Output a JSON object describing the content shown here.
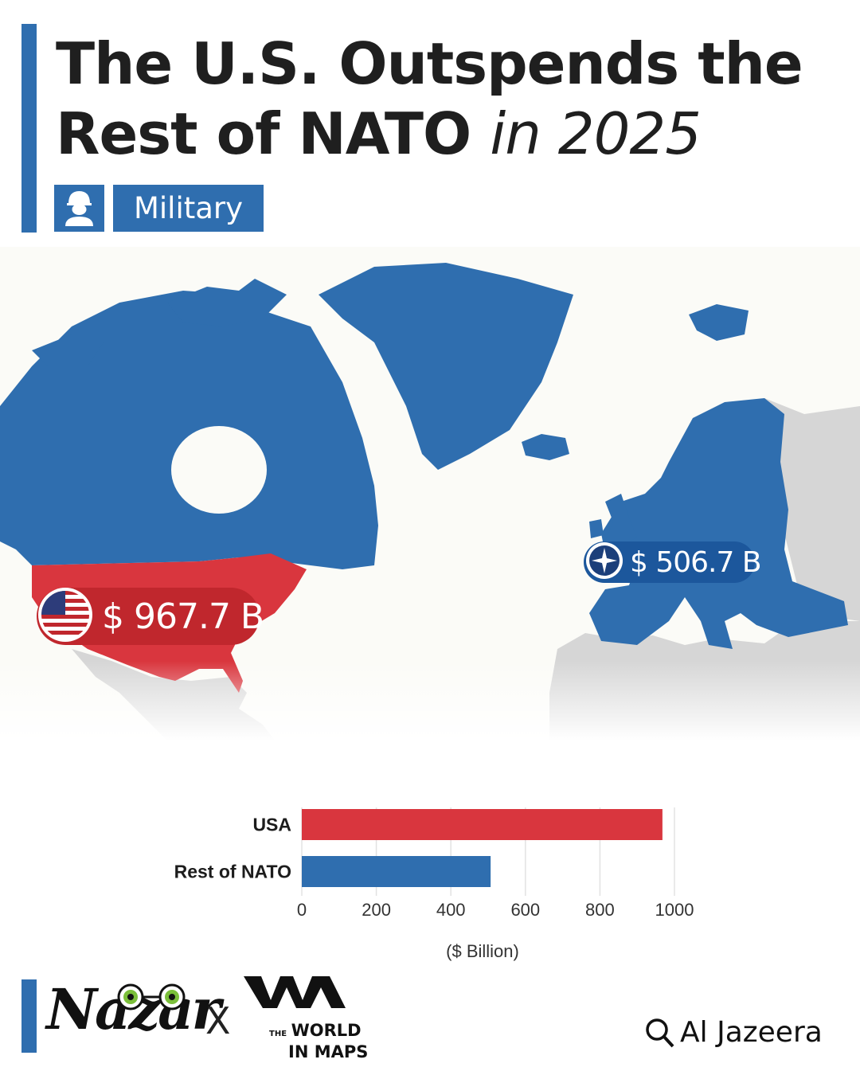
{
  "header": {
    "title_line1": "The U.S. Outspends the",
    "title_line2_bold": "Rest of NATO",
    "title_line2_italic": "in 2025",
    "category": "Military",
    "category_icon": "soldier-icon"
  },
  "map_labels": {
    "usa": {
      "value": "$ 967.7 B",
      "icon": "us-flag-icon",
      "color": "#c0272d"
    },
    "nato": {
      "value": "$ 506.7 B",
      "icon": "nato-emblem-icon",
      "color": "#1c579c"
    }
  },
  "colors": {
    "usa": "#d9363e",
    "nato": "#2f6eaf",
    "accent": "#2f6eaf",
    "land_grey": "#d6d6d6",
    "water": "#fbfbf7"
  },
  "chart_data": {
    "type": "bar",
    "orientation": "horizontal",
    "categories": [
      "USA",
      "Rest of NATO"
    ],
    "values": [
      967.7,
      506.7
    ],
    "bar_colors": [
      "#d9363e",
      "#2f6eaf"
    ],
    "xlabel": "($ Billion)",
    "xlim": [
      0,
      1000
    ],
    "xticks": [
      0,
      200,
      400,
      600,
      800,
      1000
    ],
    "grid": true
  },
  "footer": {
    "brand1": "Nazar",
    "separator": "X",
    "brand2_small": "THE",
    "brand2_line1": "WORLD",
    "brand2_line2": "IN MAPS",
    "source": "Al Jazeera"
  }
}
